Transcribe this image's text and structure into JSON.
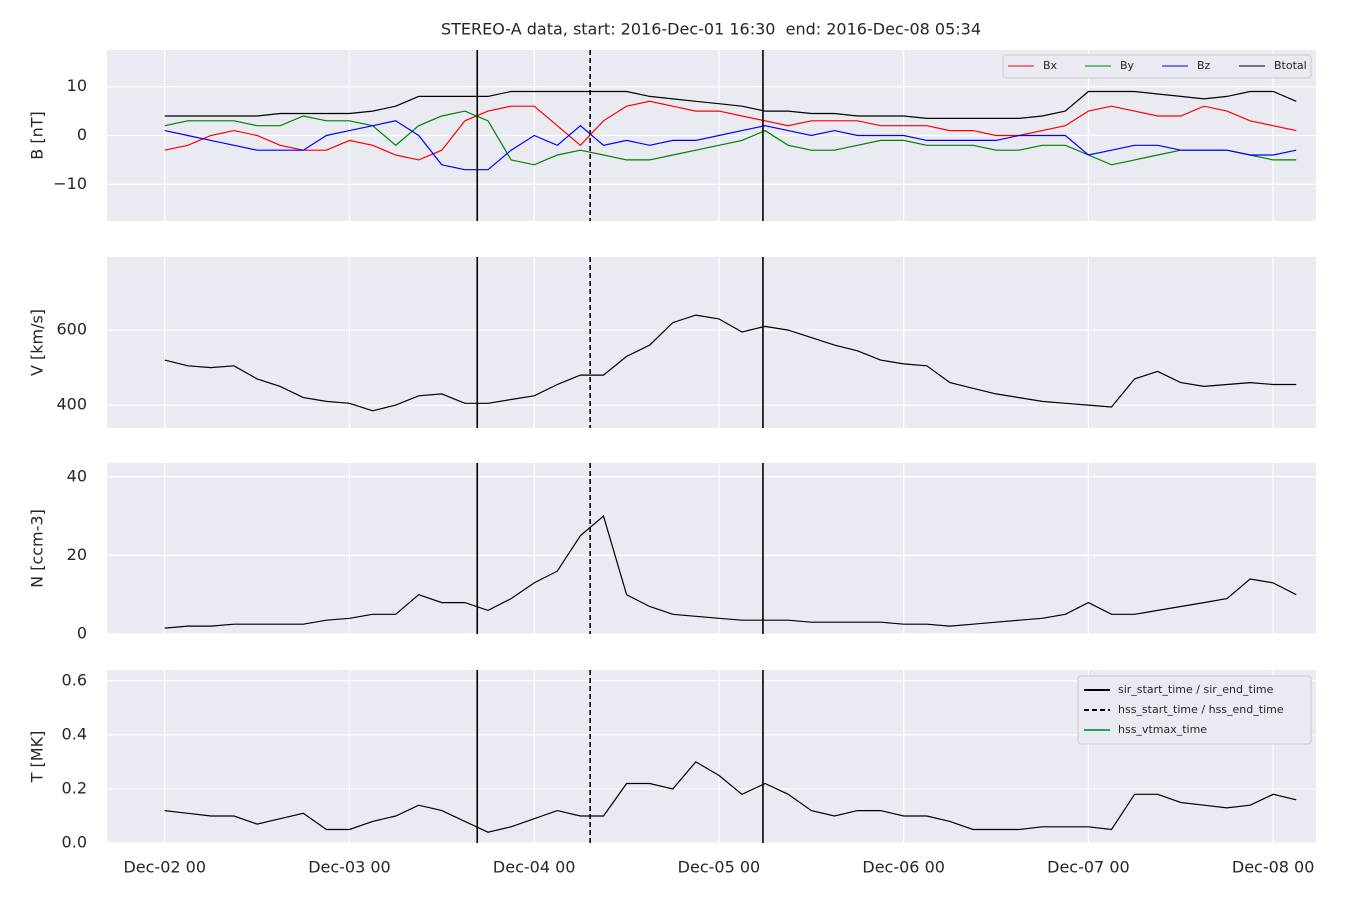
{
  "chart_data": [
    {
      "type": "line",
      "title": "STEREO-A data, start: 2016-Dec-01 16:30  end: 2016-Dec-08 05:34",
      "ylabel": "B [nT]",
      "x": [
        "2016-12-02T00:00",
        "2016-12-02T03:00",
        "2016-12-02T06:00",
        "2016-12-02T09:00",
        "2016-12-02T12:00",
        "2016-12-02T15:00",
        "2016-12-02T18:00",
        "2016-12-02T21:00",
        "2016-12-03T00:00",
        "2016-12-03T03:00",
        "2016-12-03T06:00",
        "2016-12-03T09:00",
        "2016-12-03T12:00",
        "2016-12-03T15:00",
        "2016-12-03T18:00",
        "2016-12-03T21:00",
        "2016-12-04T00:00",
        "2016-12-04T03:00",
        "2016-12-04T06:00",
        "2016-12-04T09:00",
        "2016-12-04T12:00",
        "2016-12-04T15:00",
        "2016-12-04T18:00",
        "2016-12-04T21:00",
        "2016-12-05T00:00",
        "2016-12-05T03:00",
        "2016-12-05T06:00",
        "2016-12-05T09:00",
        "2016-12-05T12:00",
        "2016-12-05T15:00",
        "2016-12-05T18:00",
        "2016-12-05T21:00",
        "2016-12-06T00:00",
        "2016-12-06T03:00",
        "2016-12-06T06:00",
        "2016-12-06T09:00",
        "2016-12-06T12:00",
        "2016-12-06T15:00",
        "2016-12-06T18:00",
        "2016-12-06T21:00",
        "2016-12-07T00:00",
        "2016-12-07T03:00",
        "2016-12-07T06:00",
        "2016-12-07T09:00",
        "2016-12-07T12:00",
        "2016-12-07T15:00",
        "2016-12-07T18:00",
        "2016-12-07T21:00",
        "2016-12-08T00:00",
        "2016-12-08T03:00"
      ],
      "series": [
        {
          "name": "Bx",
          "color": "#ff0000",
          "values": [
            -3,
            -2,
            0,
            1,
            0,
            -2,
            -3,
            -3,
            -1,
            -2,
            -4,
            -5,
            -3,
            3,
            5,
            6,
            6,
            2,
            -2,
            3,
            6,
            7,
            6,
            5,
            5,
            4,
            3,
            2,
            3,
            3,
            3,
            2,
            2,
            2,
            1,
            1,
            0,
            0,
            1,
            2,
            5,
            6,
            5,
            4,
            4,
            6,
            5,
            3,
            2,
            1
          ]
        },
        {
          "name": "By",
          "color": "#008000",
          "values": [
            2,
            3,
            3,
            3,
            2,
            2,
            4,
            3,
            3,
            2,
            -2,
            2,
            4,
            5,
            3,
            -5,
            -6,
            -4,
            -3,
            -4,
            -5,
            -5,
            -4,
            -3,
            -2,
            -1,
            1,
            -2,
            -3,
            -3,
            -2,
            -1,
            -1,
            -2,
            -2,
            -2,
            -3,
            -3,
            -2,
            -2,
            -4,
            -6,
            -5,
            -4,
            -3,
            -3,
            -3,
            -4,
            -5,
            -5
          ]
        },
        {
          "name": "Bz",
          "color": "#0000ff",
          "values": [
            1,
            0,
            -1,
            -2,
            -3,
            -3,
            -3,
            0,
            1,
            2,
            3,
            0,
            -6,
            -7,
            -7,
            -3,
            0,
            -2,
            2,
            -2,
            -1,
            -2,
            -1,
            -1,
            0,
            1,
            2,
            1,
            0,
            1,
            0,
            0,
            0,
            -1,
            -1,
            -1,
            -1,
            0,
            0,
            0,
            -4,
            -3,
            -2,
            -2,
            -3,
            -3,
            -3,
            -4,
            -4,
            -3
          ]
        },
        {
          "name": "Btotal",
          "color": "#000000",
          "values": [
            4,
            4,
            4,
            4,
            4,
            4.5,
            4.5,
            4.5,
            4.5,
            5,
            6,
            8,
            8,
            8,
            8,
            9,
            9,
            9,
            9,
            9,
            9,
            8,
            7.5,
            7,
            6.5,
            6,
            5,
            5,
            4.5,
            4.5,
            4,
            4,
            4,
            3.5,
            3.5,
            3.5,
            3.5,
            3.5,
            4,
            5,
            9,
            9,
            9,
            8.5,
            8,
            7.5,
            8,
            9,
            9,
            7
          ]
        }
      ],
      "xlim": [
        "2016-12-01T16:30",
        "2016-12-08T05:34"
      ],
      "xticks": [
        "2016-12-02T00:00",
        "2016-12-03T00:00",
        "2016-12-04T00:00",
        "2016-12-05T00:00",
        "2016-12-06T00:00",
        "2016-12-07T00:00",
        "2016-12-08T00:00"
      ],
      "ylim": [
        -17.5,
        17.5
      ],
      "yticks": [
        {
          "value": -10,
          "label": "−10"
        },
        0,
        10
      ],
      "events": [
        {
          "time": "2016-12-03T16:36",
          "style": "solid"
        },
        {
          "time": "2016-12-04T07:16",
          "style": "dashed"
        },
        {
          "time": "2016-12-05T05:43",
          "style": "solid"
        }
      ],
      "grid": true,
      "legend": "upper right"
    },
    {
      "type": "line",
      "ylabel": "V [km/s]",
      "x": [
        "2016-12-02T00:00",
        "2016-12-02T03:00",
        "2016-12-02T06:00",
        "2016-12-02T09:00",
        "2016-12-02T12:00",
        "2016-12-02T15:00",
        "2016-12-02T18:00",
        "2016-12-02T21:00",
        "2016-12-03T00:00",
        "2016-12-03T03:00",
        "2016-12-03T06:00",
        "2016-12-03T09:00",
        "2016-12-03T12:00",
        "2016-12-03T15:00",
        "2016-12-03T18:00",
        "2016-12-03T21:00",
        "2016-12-04T00:00",
        "2016-12-04T03:00",
        "2016-12-04T06:00",
        "2016-12-04T09:00",
        "2016-12-04T12:00",
        "2016-12-04T15:00",
        "2016-12-04T18:00",
        "2016-12-04T21:00",
        "2016-12-05T00:00",
        "2016-12-05T03:00",
        "2016-12-05T06:00",
        "2016-12-05T09:00",
        "2016-12-05T12:00",
        "2016-12-05T15:00",
        "2016-12-05T18:00",
        "2016-12-05T21:00",
        "2016-12-06T00:00",
        "2016-12-06T03:00",
        "2016-12-06T06:00",
        "2016-12-06T09:00",
        "2016-12-06T12:00",
        "2016-12-06T15:00",
        "2016-12-06T18:00",
        "2016-12-06T21:00",
        "2016-12-07T00:00",
        "2016-12-07T03:00",
        "2016-12-07T06:00",
        "2016-12-07T09:00",
        "2016-12-07T12:00",
        "2016-12-07T15:00",
        "2016-12-07T18:00",
        "2016-12-07T21:00",
        "2016-12-08T00:00",
        "2016-12-08T03:00"
      ],
      "series": [
        {
          "color": "#000000",
          "values": [
            520,
            505,
            500,
            505,
            470,
            450,
            420,
            410,
            405,
            385,
            400,
            425,
            430,
            405,
            405,
            415,
            425,
            455,
            480,
            480,
            530,
            560,
            620,
            640,
            630,
            595,
            610,
            600,
            580,
            560,
            545,
            520,
            510,
            505,
            460,
            445,
            430,
            420,
            410,
            405,
            400,
            395,
            470,
            490,
            460,
            450,
            455,
            460,
            455,
            455
          ]
        }
      ],
      "xlim": [
        "2016-12-01T16:30",
        "2016-12-08T05:34"
      ],
      "xticks": [
        "2016-12-02T00:00",
        "2016-12-03T00:00",
        "2016-12-04T00:00",
        "2016-12-05T00:00",
        "2016-12-06T00:00",
        "2016-12-07T00:00",
        "2016-12-08T00:00"
      ],
      "ylim": [
        339,
        795
      ],
      "yticks": [
        400,
        600
      ],
      "events": [
        {
          "time": "2016-12-03T16:36",
          "style": "solid"
        },
        {
          "time": "2016-12-04T07:16",
          "style": "dashed"
        },
        {
          "time": "2016-12-05T05:43",
          "style": "solid"
        }
      ],
      "grid": true
    },
    {
      "type": "line",
      "ylabel": "N [ccm-3]",
      "x": [
        "2016-12-02T00:00",
        "2016-12-02T03:00",
        "2016-12-02T06:00",
        "2016-12-02T09:00",
        "2016-12-02T12:00",
        "2016-12-02T15:00",
        "2016-12-02T18:00",
        "2016-12-02T21:00",
        "2016-12-03T00:00",
        "2016-12-03T03:00",
        "2016-12-03T06:00",
        "2016-12-03T09:00",
        "2016-12-03T12:00",
        "2016-12-03T15:00",
        "2016-12-03T18:00",
        "2016-12-03T21:00",
        "2016-12-04T00:00",
        "2016-12-04T03:00",
        "2016-12-04T06:00",
        "2016-12-04T09:00",
        "2016-12-04T12:00",
        "2016-12-04T15:00",
        "2016-12-04T18:00",
        "2016-12-04T21:00",
        "2016-12-05T00:00",
        "2016-12-05T03:00",
        "2016-12-05T06:00",
        "2016-12-05T09:00",
        "2016-12-05T12:00",
        "2016-12-05T15:00",
        "2016-12-05T18:00",
        "2016-12-05T21:00",
        "2016-12-06T00:00",
        "2016-12-06T03:00",
        "2016-12-06T06:00",
        "2016-12-06T09:00",
        "2016-12-06T12:00",
        "2016-12-06T15:00",
        "2016-12-06T18:00",
        "2016-12-06T21:00",
        "2016-12-07T00:00",
        "2016-12-07T03:00",
        "2016-12-07T06:00",
        "2016-12-07T09:00",
        "2016-12-07T12:00",
        "2016-12-07T15:00",
        "2016-12-07T18:00",
        "2016-12-07T21:00",
        "2016-12-08T00:00",
        "2016-12-08T03:00"
      ],
      "series": [
        {
          "color": "#000000",
          "values": [
            1.5,
            2,
            2,
            2.5,
            2.5,
            2.5,
            2.5,
            3.5,
            4,
            5,
            5,
            10,
            8,
            8,
            6,
            9,
            13,
            16,
            25,
            30,
            10,
            7,
            5,
            4.5,
            4,
            3.5,
            3.5,
            3.5,
            3,
            3,
            3,
            3,
            2.5,
            2.5,
            2,
            2.5,
            3,
            3.5,
            4,
            5,
            8,
            5,
            5,
            6,
            7,
            8,
            9,
            14,
            13,
            10
          ]
        }
      ],
      "xlim": [
        "2016-12-01T16:30",
        "2016-12-08T05:34"
      ],
      "xticks": [
        "2016-12-02T00:00",
        "2016-12-03T00:00",
        "2016-12-04T00:00",
        "2016-12-05T00:00",
        "2016-12-06T00:00",
        "2016-12-07T00:00",
        "2016-12-08T00:00"
      ],
      "ylim": [
        0,
        43.5
      ],
      "yticks": [
        0,
        20,
        40
      ],
      "events": [
        {
          "time": "2016-12-03T16:36",
          "style": "solid"
        },
        {
          "time": "2016-12-04T07:16",
          "style": "dashed"
        },
        {
          "time": "2016-12-05T05:43",
          "style": "solid"
        }
      ],
      "grid": true
    },
    {
      "type": "line",
      "ylabel": "T [MK]",
      "x": [
        "2016-12-02T00:00",
        "2016-12-02T03:00",
        "2016-12-02T06:00",
        "2016-12-02T09:00",
        "2016-12-02T12:00",
        "2016-12-02T15:00",
        "2016-12-02T18:00",
        "2016-12-02T21:00",
        "2016-12-03T00:00",
        "2016-12-03T03:00",
        "2016-12-03T06:00",
        "2016-12-03T09:00",
        "2016-12-03T12:00",
        "2016-12-03T15:00",
        "2016-12-03T18:00",
        "2016-12-03T21:00",
        "2016-12-04T00:00",
        "2016-12-04T03:00",
        "2016-12-04T06:00",
        "2016-12-04T09:00",
        "2016-12-04T12:00",
        "2016-12-04T15:00",
        "2016-12-04T18:00",
        "2016-12-04T21:00",
        "2016-12-05T00:00",
        "2016-12-05T03:00",
        "2016-12-05T06:00",
        "2016-12-05T09:00",
        "2016-12-05T12:00",
        "2016-12-05T15:00",
        "2016-12-05T18:00",
        "2016-12-05T21:00",
        "2016-12-06T00:00",
        "2016-12-06T03:00",
        "2016-12-06T06:00",
        "2016-12-06T09:00",
        "2016-12-06T12:00",
        "2016-12-06T15:00",
        "2016-12-06T18:00",
        "2016-12-06T21:00",
        "2016-12-07T00:00",
        "2016-12-07T03:00",
        "2016-12-07T06:00",
        "2016-12-07T09:00",
        "2016-12-07T12:00",
        "2016-12-07T15:00",
        "2016-12-07T18:00",
        "2016-12-07T21:00",
        "2016-12-08T00:00",
        "2016-12-08T03:00"
      ],
      "series": [
        {
          "color": "#000000",
          "values": [
            0.12,
            0.11,
            0.1,
            0.1,
            0.07,
            0.09,
            0.11,
            0.05,
            0.05,
            0.08,
            0.1,
            0.14,
            0.12,
            0.08,
            0.04,
            0.06,
            0.09,
            0.12,
            0.1,
            0.1,
            0.22,
            0.22,
            0.2,
            0.3,
            0.25,
            0.18,
            0.22,
            0.18,
            0.12,
            0.1,
            0.12,
            0.12,
            0.1,
            0.1,
            0.08,
            0.05,
            0.05,
            0.05,
            0.06,
            0.06,
            0.06,
            0.05,
            0.18,
            0.18,
            0.15,
            0.14,
            0.13,
            0.14,
            0.18,
            0.16
          ]
        }
      ],
      "xlim": [
        "2016-12-01T16:30",
        "2016-12-08T05:34"
      ],
      "xticks": [
        {
          "value": "2016-12-02T00:00",
          "label": "Dec-02 00"
        },
        {
          "value": "2016-12-03T00:00",
          "label": "Dec-03 00"
        },
        {
          "value": "2016-12-04T00:00",
          "label": "Dec-04 00"
        },
        {
          "value": "2016-12-05T00:00",
          "label": "Dec-05 00"
        },
        {
          "value": "2016-12-06T00:00",
          "label": "Dec-06 00"
        },
        {
          "value": "2016-12-07T00:00",
          "label": "Dec-07 00"
        },
        {
          "value": "2016-12-08T00:00",
          "label": "Dec-08 00"
        }
      ],
      "ylim": [
        0,
        0.64
      ],
      "yticks": [
        {
          "value": 0,
          "label": "0.0"
        },
        0.2,
        0.4,
        0.6
      ],
      "events": [
        {
          "time": "2016-12-03T16:36",
          "style": "solid"
        },
        {
          "time": "2016-12-04T07:16",
          "style": "dashed"
        },
        {
          "time": "2016-12-05T05:43",
          "style": "solid"
        }
      ],
      "event_legend": [
        {
          "name": "sir_start_time / sir_end_time",
          "color": "#000000",
          "style": "solid"
        },
        {
          "name": "hss_start_time / hss_end_time",
          "color": "#000000",
          "style": "dashed"
        },
        {
          "name": "hss_vtmax_time",
          "color": "#2ca25f",
          "style": "solid"
        }
      ],
      "grid": true,
      "legend": "upper right"
    }
  ]
}
